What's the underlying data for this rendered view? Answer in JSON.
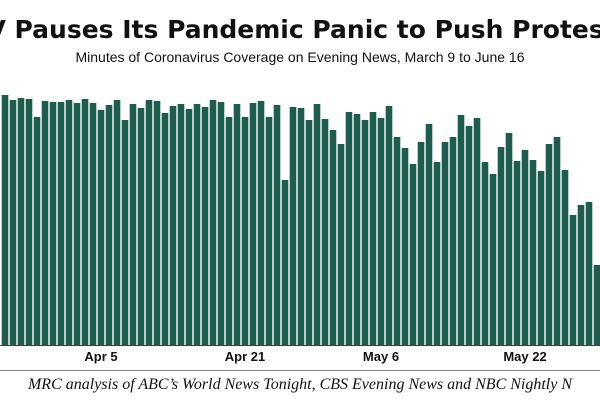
{
  "chart_data": {
    "type": "bar",
    "title": "TV Pauses Its Pandemic Panic to Push Protests",
    "subtitle": "Minutes of  Coronavirus Coverage on Evening News, March 9  to June 16",
    "source": "MRC analysis of ABC’s World News Tonight, CBS Evening News and NBC Nightly N",
    "color": "#1d5c4f",
    "ylim": [
      0,
      100
    ],
    "categories": [
      null,
      null,
      null,
      null,
      null,
      null,
      null,
      null,
      null,
      null,
      null,
      null,
      "Apr 5",
      null,
      null,
      null,
      null,
      null,
      null,
      null,
      null,
      null,
      null,
      null,
      null,
      null,
      null,
      null,
      null,
      null,
      "Apr 21",
      null,
      null,
      null,
      null,
      null,
      null,
      null,
      null,
      null,
      null,
      null,
      null,
      null,
      null,
      null,
      null,
      "May 6",
      null,
      null,
      null,
      null,
      null,
      null,
      null,
      null,
      null,
      null,
      null,
      null,
      null,
      null,
      null,
      null,
      null,
      "May 22",
      null,
      null,
      null,
      null,
      null,
      null,
      null,
      null,
      null
    ],
    "values": [
      100,
      98,
      98.8,
      98.4,
      91.2,
      97.6,
      97.2,
      97.2,
      98,
      96.8,
      98.4,
      96.8,
      94,
      96,
      98,
      90,
      96.4,
      94.8,
      98,
      97.6,
      92.8,
      95.6,
      96.4,
      94.4,
      96.4,
      95.2,
      98,
      97.2,
      91.2,
      96.4,
      91.2,
      96.8,
      97.6,
      91.2,
      96,
      66,
      95.2,
      94.8,
      90,
      96.4,
      90.4,
      86,
      80.4,
      93.2,
      92.4,
      90,
      93.2,
      90.8,
      95.6,
      83.2,
      78.8,
      72.4,
      81.2,
      88.4,
      73.2,
      81.2,
      83.2,
      92,
      87.6,
      90.8,
      73.2,
      68.4,
      79.2,
      84.8,
      73.6,
      78,
      74,
      69.6,
      80.4,
      83.2,
      70,
      52,
      56,
      57.2,
      32
    ]
  }
}
